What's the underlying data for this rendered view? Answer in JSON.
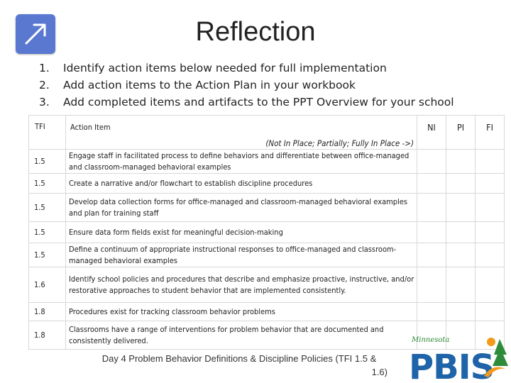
{
  "header": {
    "title": "Reflection",
    "icon": "external-link-arrow-icon"
  },
  "steps": [
    {
      "num": "1.",
      "text": "Identify action items below needed for full implementation"
    },
    {
      "num": "2.",
      "text": "Add action items to the Action Plan in your workbook"
    },
    {
      "num": "3.",
      "text": "Add completed items and artifacts to the PPT Overview for your school"
    }
  ],
  "table": {
    "headers": {
      "tfi": "TFI",
      "action": "Action Item",
      "scale_note": "(Not In Place; Partially; Fully In Place ->)",
      "ni": "NI",
      "pi": "PI",
      "fi": "FI"
    },
    "rows": [
      {
        "tfi": "1.5",
        "item": "Engage staff in facilitated process to define behaviors and differentiate between office-managed and classroom-managed behavioral examples"
      },
      {
        "tfi": "1.5",
        "item": "Create a narrative and/or flowchart to establish discipline procedures"
      },
      {
        "tfi": "1.5",
        "item": "Develop data collection forms for office-managed and classroom-managed behavioral examples and plan for training staff"
      },
      {
        "tfi": "1.5",
        "item": "Ensure data form fields exist for meaningful decision-making"
      },
      {
        "tfi": "1.5",
        "item": "Define a continuum of appropriate instructional responses to office-managed and classroom-managed behavioral examples"
      },
      {
        "tfi": "1.6",
        "item": "Identify school policies and procedures that describe and emphasize proactive, instructive, and/or restorative approaches to student behavior that are implemented consistently."
      },
      {
        "tfi": "1.8",
        "item": "Procedures exist for tracking classroom behavior problems"
      },
      {
        "tfi": "1.8",
        "item": "Classrooms have a range of interventions for problem behavior that are documented and consistently delivered."
      }
    ]
  },
  "footer": {
    "line1": "Day 4 Problem Behavior Definitions & Discipline Policies (TFI 1.5 &",
    "line2": "1.6)"
  },
  "logo": {
    "small_text": "Minnesota",
    "big_text": "PBIS"
  },
  "colors": {
    "icon_bg": "#5a78d0",
    "logo_blue": "#1f63a8",
    "logo_green": "#2e8b3a",
    "logo_orange": "#f39a1d"
  }
}
